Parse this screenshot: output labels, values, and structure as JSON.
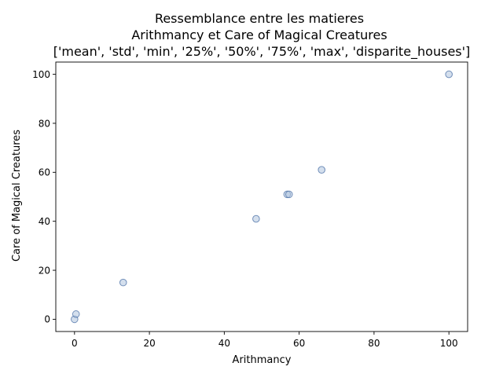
{
  "chart_data": {
    "type": "scatter",
    "title_lines": [
      "Ressemblance entre les matieres",
      "Arithmancy et Care of Magical Creatures",
      "['mean', 'std', 'min', '25%', '50%', '75%', 'max', 'disparite_houses']"
    ],
    "xlabel": "Arithmancy",
    "ylabel": "Care of Magical Creatures",
    "xlim": [
      -5,
      105
    ],
    "ylim": [
      -5,
      105
    ],
    "xticks": [
      0,
      20,
      40,
      60,
      80,
      100
    ],
    "yticks": [
      0,
      20,
      40,
      60,
      80,
      100
    ],
    "grid": false,
    "points": [
      {
        "x": 0,
        "y": 0
      },
      {
        "x": 0.4,
        "y": 2.1
      },
      {
        "x": 13,
        "y": 15
      },
      {
        "x": 48.5,
        "y": 41
      },
      {
        "x": 56.8,
        "y": 51
      },
      {
        "x": 57.3,
        "y": 51
      },
      {
        "x": 66,
        "y": 61
      },
      {
        "x": 100,
        "y": 100
      }
    ],
    "marker_fill": "#b0c4de",
    "marker_stroke": "#4a6fa5",
    "marker_alpha": 0.55
  }
}
